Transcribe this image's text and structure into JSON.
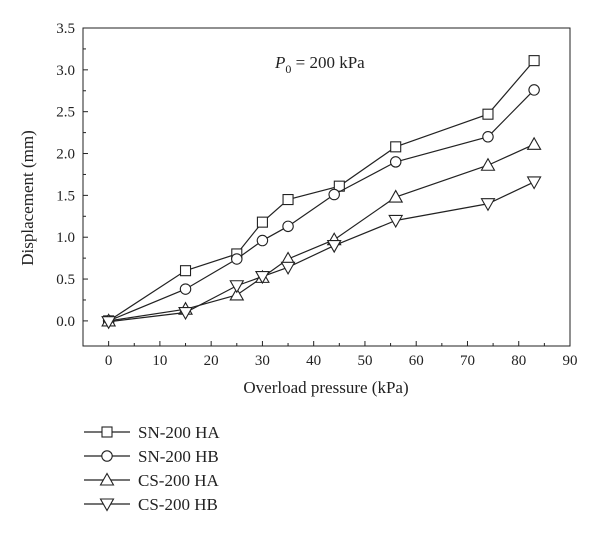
{
  "chart_data": {
    "type": "line",
    "xlabel": "Overload pressure (kPa)",
    "ylabel": "Displacement (mm)",
    "annotation": {
      "symbol": "P",
      "subscript": "0",
      "rest": " = 200 kPa"
    },
    "xlim": [
      -5,
      90
    ],
    "ylim": [
      -0.3,
      3.5
    ],
    "xticks": [
      "0",
      "10",
      "20",
      "30",
      "40",
      "50",
      "60",
      "70",
      "80",
      "90"
    ],
    "yticks": [
      "0.0",
      "0.5",
      "1.0",
      "1.5",
      "2.0",
      "2.5",
      "3.0",
      "3.5"
    ],
    "grid": false,
    "legend_position": "below",
    "series": [
      {
        "name": "SN-200 HA",
        "marker": "square",
        "x": [
          0,
          15,
          25,
          30,
          35,
          45,
          56,
          74,
          83
        ],
        "y": [
          0.0,
          0.6,
          0.8,
          1.18,
          1.45,
          1.61,
          2.08,
          2.47,
          3.11
        ]
      },
      {
        "name": "SN-200 HB",
        "marker": "circle",
        "x": [
          0,
          15,
          25,
          30,
          35,
          44,
          56,
          74,
          83
        ],
        "y": [
          0.0,
          0.38,
          0.74,
          0.96,
          1.13,
          1.51,
          1.9,
          2.2,
          2.76
        ]
      },
      {
        "name": "CS-200 HA",
        "marker": "triangle-up",
        "x": [
          0,
          15,
          25,
          30,
          35,
          44,
          56,
          74,
          83
        ],
        "y": [
          0.0,
          0.14,
          0.31,
          0.52,
          0.74,
          0.97,
          1.48,
          1.86,
          2.11
        ]
      },
      {
        "name": "CS-200 HB",
        "marker": "triangle-down",
        "x": [
          0,
          15,
          25,
          30,
          35,
          44,
          56,
          74,
          83
        ],
        "y": [
          -0.01,
          0.1,
          0.42,
          0.53,
          0.64,
          0.9,
          1.2,
          1.4,
          1.66
        ]
      }
    ]
  }
}
